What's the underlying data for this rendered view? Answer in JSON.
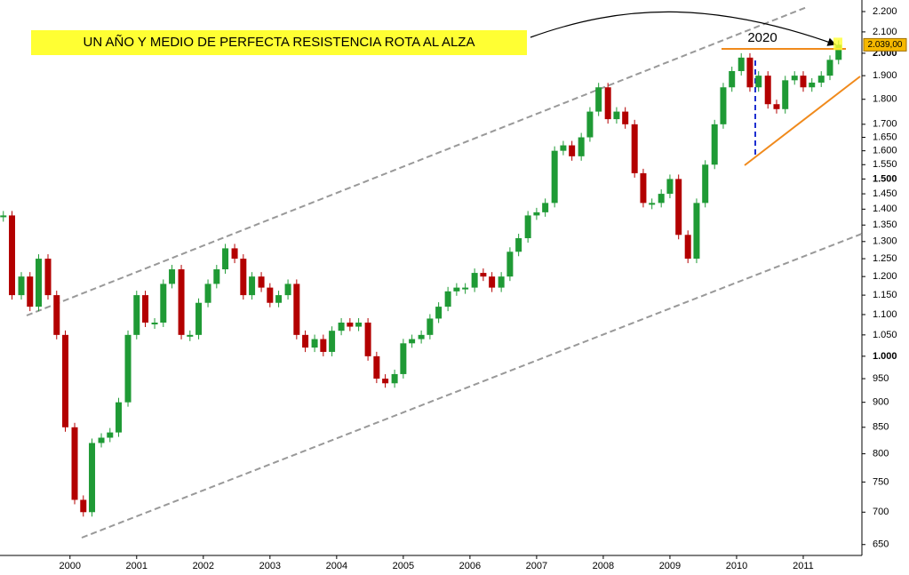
{
  "chart_data": {
    "type": "candles",
    "log_scale": true,
    "annotation": "UN AÑO Y MEDIO DE PERFECTA RESISTENCIA ROTA AL ALZA",
    "resistance": 2020,
    "resistance_label": "2020",
    "last_value": 2039,
    "last_label": "2.039,00",
    "up_color": "#1f9a35",
    "down_color": "#b30000",
    "x": [
      1999.0,
      1999.13,
      1999.27,
      1999.4,
      1999.53,
      1999.67,
      1999.8,
      1999.93,
      2000.07,
      2000.2,
      2000.33,
      2000.47,
      2000.6,
      2000.73,
      2000.87,
      2001.0,
      2001.13,
      2001.27,
      2001.4,
      2001.53,
      2001.67,
      2001.8,
      2001.93,
      2002.07,
      2002.2,
      2002.33,
      2002.47,
      2002.6,
      2002.73,
      2002.87,
      2003.0,
      2003.13,
      2003.27,
      2003.4,
      2003.53,
      2003.67,
      2003.8,
      2003.93,
      2004.07,
      2004.2,
      2004.33,
      2004.47,
      2004.6,
      2004.73,
      2004.87,
      2005.0,
      2005.13,
      2005.27,
      2005.4,
      2005.53,
      2005.67,
      2005.8,
      2005.93,
      2006.07,
      2006.2,
      2006.33,
      2006.47,
      2006.6,
      2006.73,
      2006.87,
      2007.0,
      2007.13,
      2007.27,
      2007.4,
      2007.53,
      2007.67,
      2007.8,
      2007.93,
      2008.07,
      2008.2,
      2008.33,
      2008.47,
      2008.6,
      2008.73,
      2008.87,
      2009.0,
      2009.13,
      2009.27,
      2009.4,
      2009.53,
      2009.67,
      2009.8,
      2009.93,
      2010.07,
      2010.2,
      2010.33,
      2010.47,
      2010.6,
      2010.73,
      2010.87,
      2011.0,
      2011.13,
      2011.27,
      2011.4,
      2011.53
    ],
    "values": [
      1380,
      1150,
      1200,
      1120,
      1250,
      1150,
      1050,
      850,
      720,
      700,
      820,
      830,
      840,
      900,
      1050,
      1150,
      1080,
      1080,
      1180,
      1220,
      1050,
      1050,
      1130,
      1180,
      1220,
      1280,
      1250,
      1150,
      1200,
      1170,
      1130,
      1150,
      1180,
      1050,
      1020,
      1040,
      1010,
      1060,
      1080,
      1070,
      1080,
      1000,
      950,
      940,
      960,
      1030,
      1040,
      1050,
      1090,
      1120,
      1160,
      1170,
      1170,
      1210,
      1200,
      1170,
      1200,
      1270,
      1310,
      1380,
      1390,
      1420,
      1600,
      1620,
      1580,
      1650,
      1750,
      1850,
      1720,
      1750,
      1700,
      1520,
      1420,
      1420,
      1450,
      1500,
      1320,
      1250,
      1420,
      1550,
      1700,
      1850,
      1920,
      1980,
      1850,
      1900,
      1780,
      1760,
      1880,
      1900,
      1850,
      1870,
      1900,
      1970,
      2039
    ],
    "xlim": [
      1998.95,
      2011.88
    ],
    "xticks": [
      2000,
      2001,
      2002,
      2003,
      2004,
      2005,
      2006,
      2007,
      2008,
      2009,
      2010,
      2011
    ],
    "ylim": [
      634,
      2259
    ],
    "yticks": [
      650,
      700,
      750,
      800,
      850,
      900,
      950,
      {
        "value": 1000,
        "label": "1.000"
      },
      {
        "value": 1050,
        "label": "1.050"
      },
      {
        "value": 1100,
        "label": "1.100"
      },
      {
        "value": 1150,
        "label": "1.150"
      },
      {
        "value": 1200,
        "label": "1.200"
      },
      {
        "value": 1250,
        "label": "1.250"
      },
      {
        "value": 1300,
        "label": "1.300"
      },
      {
        "value": 1350,
        "label": "1.350"
      },
      {
        "value": 1400,
        "label": "1.400"
      },
      {
        "value": 1450,
        "label": "1.450"
      },
      {
        "value": 1500,
        "label": "1.500"
      },
      {
        "value": 1550,
        "label": "1.550"
      },
      {
        "value": 1600,
        "label": "1.600"
      },
      {
        "value": 1650,
        "label": "1.650"
      },
      {
        "value": 1700,
        "label": "1.700"
      },
      {
        "value": 1800,
        "label": "1.800"
      },
      {
        "value": 1900,
        "label": "1.900"
      },
      {
        "value": 2000,
        "label": "2.000"
      },
      {
        "value": 2100,
        "label": "2.100"
      },
      {
        "value": 2200,
        "label": "2.200"
      }
    ]
  }
}
